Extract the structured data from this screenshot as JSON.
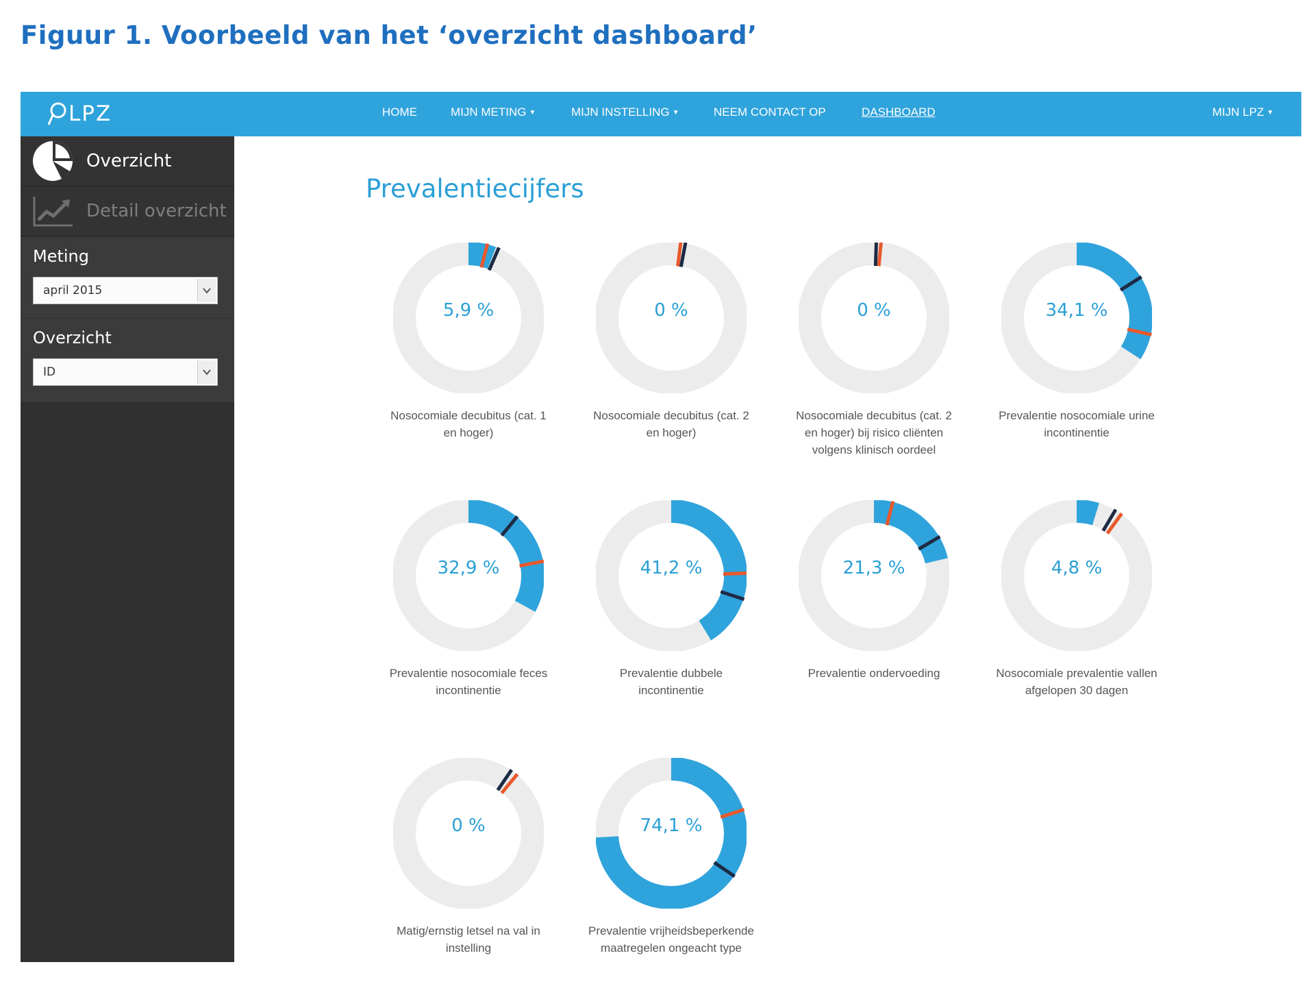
{
  "caption": "Figuur 1.  Voorbeeld van het ‘overzicht dashboard’",
  "navbar": {
    "logo": "LPZ",
    "items": [
      {
        "label": "HOME",
        "caret": false,
        "active": false
      },
      {
        "label": "MIJN METING",
        "caret": true,
        "active": false
      },
      {
        "label": "MIJN INSTELLING",
        "caret": true,
        "active": false
      },
      {
        "label": "NEEM CONTACT OP",
        "caret": false,
        "active": false
      },
      {
        "label": "DASHBOARD",
        "caret": false,
        "active": true
      }
    ],
    "right_item": {
      "label": "MIJN LPZ",
      "caret": true
    }
  },
  "sidebar": {
    "overview_label": "Overzicht",
    "detail_label": "Detail overzicht",
    "meting": {
      "label": "Meting",
      "value": "april 2015"
    },
    "overzicht": {
      "label": "Overzicht",
      "value": "ID"
    }
  },
  "main": {
    "title": "Prevalentiecijfers",
    "tiles": [
      {
        "value": "5,9 %",
        "fraction": 0.059,
        "title_lines": [
          "Nosocomiale decubitus (cat. 1",
          "en hoger)"
        ],
        "markers": [
          {
            "pos": 0.04,
            "color": "#e8582b"
          },
          {
            "pos": 0.065,
            "color": "#1d2a44"
          }
        ]
      },
      {
        "value": "0 %",
        "fraction": 0.0,
        "title_lines": [
          "Nosocomiale decubitus (cat. 2",
          "en hoger)"
        ],
        "markers": [
          {
            "pos": 0.02,
            "color": "#e8582b"
          },
          {
            "pos": 0.03,
            "color": "#1d2a44"
          }
        ]
      },
      {
        "value": "0 %",
        "fraction": 0.0,
        "title_lines": [
          "Nosocomiale decubitus (cat. 2",
          "en hoger) bij risico cliënten",
          "volgens klinisch oordeel"
        ],
        "markers": [
          {
            "pos": 0.005,
            "color": "#1d2a44"
          },
          {
            "pos": 0.015,
            "color": "#e8582b"
          }
        ]
      },
      {
        "value": "34,1 %",
        "fraction": 0.341,
        "title_lines": [
          "Prevalentie nosocomiale urine",
          "incontinentie"
        ],
        "markers": [
          {
            "pos": 0.16,
            "color": "#1d2a44"
          },
          {
            "pos": 0.285,
            "color": "#e8582b"
          }
        ]
      },
      {
        "value": "32,9 %",
        "fraction": 0.329,
        "title_lines": [
          "Prevalentie nosocomiale feces",
          "incontinentie"
        ],
        "markers": [
          {
            "pos": 0.11,
            "color": "#1d2a44"
          },
          {
            "pos": 0.22,
            "color": "#e8582b"
          }
        ]
      },
      {
        "value": "41,2 %",
        "fraction": 0.412,
        "title_lines": [
          "Prevalentie dubbele",
          "incontinentie"
        ],
        "markers": [
          {
            "pos": 0.245,
            "color": "#e8582b"
          },
          {
            "pos": 0.3,
            "color": "#1d2a44"
          }
        ]
      },
      {
        "value": "21,3 %",
        "fraction": 0.213,
        "title_lines": [
          "Prevalentie ondervoeding"
        ],
        "markers": [
          {
            "pos": 0.04,
            "color": "#e8582b"
          },
          {
            "pos": 0.165,
            "color": "#1d2a44"
          }
        ]
      },
      {
        "value": "4,8 %",
        "fraction": 0.048,
        "title_lines": [
          "Nosocomiale prevalentie vallen",
          "afgelopen 30 dagen"
        ],
        "markers": [
          {
            "pos": 0.085,
            "color": "#1d2a44"
          },
          {
            "pos": 0.1,
            "color": "#e8582b"
          }
        ]
      },
      {
        "value": "0 %",
        "fraction": 0.0,
        "title_lines": [
          "Matig/ernstig letsel na val in",
          "instelling"
        ],
        "markers": [
          {
            "pos": 0.095,
            "color": "#1d2a44"
          },
          {
            "pos": 0.11,
            "color": "#e8582b"
          }
        ]
      },
      {
        "value": "74,1 %",
        "fraction": 0.741,
        "title_lines": [
          "Prevalentie vrijheidsbeperkende",
          "maatregelen ongeacht type"
        ],
        "markers": [
          {
            "pos": 0.2,
            "color": "#e8582b"
          },
          {
            "pos": 0.345,
            "color": "#1d2a44"
          }
        ]
      }
    ]
  },
  "colors": {
    "accent": "#2fa3dc",
    "ring_track": "#ececec",
    "marker_orange": "#e8582b",
    "marker_navy": "#1d2a44",
    "sidebar": "#2f2f2f"
  }
}
